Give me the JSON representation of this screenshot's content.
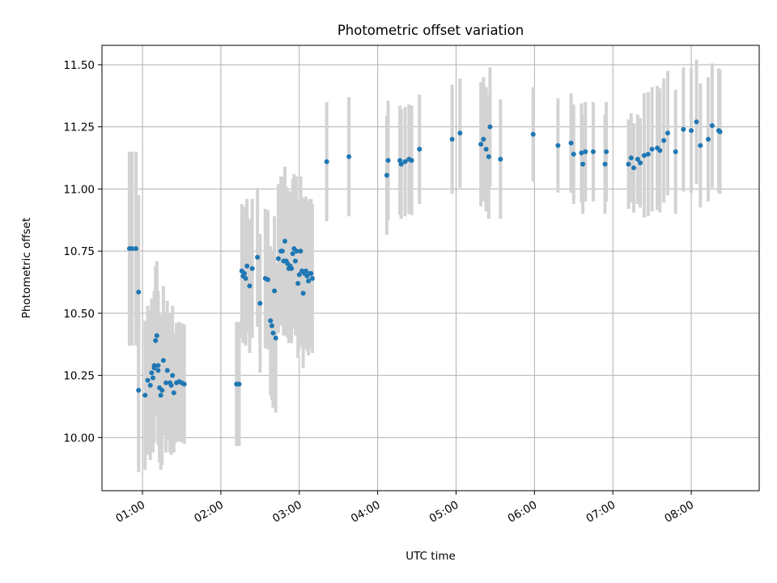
{
  "chart_data": {
    "type": "scatter",
    "title": "Photometric offset variation",
    "xlabel": "UTC time",
    "ylabel": "Photometric offset",
    "x_unit": "UTC time of day (HH:MM)",
    "xlim": [
      "00:29",
      "08:52"
    ],
    "ylim": [
      9.786,
      11.578
    ],
    "x_ticks": [
      "01:00",
      "02:00",
      "03:00",
      "04:00",
      "05:00",
      "06:00",
      "07:00",
      "08:00"
    ],
    "y_ticks": [
      "10.00",
      "10.25",
      "10.50",
      "10.75",
      "11.00",
      "11.25",
      "11.50"
    ],
    "grid": true,
    "colors": {
      "points": "#1f77b4",
      "error_bars": "#d3d3d3",
      "grid": "#b0b0b0",
      "axes": "#000000"
    },
    "series": [
      {
        "x": [
          "00:50",
          "00:52",
          "00:55",
          "00:57",
          "00:57",
          "01:02",
          "01:04",
          "01:06",
          "01:07",
          "01:08",
          "01:09",
          "01:09",
          "01:10",
          "01:11",
          "01:12",
          "01:12",
          "01:13",
          "01:14",
          "01:15",
          "01:16",
          "01:18",
          "01:19",
          "01:21",
          "01:22",
          "01:23",
          "01:24",
          "01:26",
          "01:28",
          "01:30",
          "01:32"
        ],
        "y": [
          10.76,
          10.76,
          10.76,
          10.585,
          10.19,
          10.17,
          10.23,
          10.21,
          10.26,
          10.24,
          10.29,
          10.28,
          10.39,
          10.41,
          10.27,
          10.29,
          10.2,
          10.17,
          10.19,
          10.31,
          10.22,
          10.27,
          10.22,
          10.21,
          10.25,
          10.18,
          10.22,
          10.225,
          10.22,
          10.215
        ],
        "yerr_lo": [
          0.39,
          0.39,
          0.39,
          0.39,
          0.33,
          0.3,
          0.3,
          0.3,
          0.3,
          0.3,
          0.3,
          0.3,
          0.3,
          0.3,
          0.3,
          0.3,
          0.3,
          0.3,
          0.3,
          0.3,
          0.28,
          0.28,
          0.28,
          0.28,
          0.28,
          0.24,
          0.24,
          0.24,
          0.24,
          0.24
        ],
        "yerr_hi": [
          0.39,
          0.39,
          0.39,
          0.39,
          0.33,
          0.3,
          0.3,
          0.3,
          0.3,
          0.3,
          0.3,
          0.3,
          0.3,
          0.3,
          0.3,
          0.3,
          0.3,
          0.3,
          0.3,
          0.3,
          0.28,
          0.28,
          0.28,
          0.28,
          0.28,
          0.24,
          0.24,
          0.24,
          0.24,
          0.24
        ]
      },
      {
        "x": [
          "02:12",
          "02:14",
          "02:16",
          "02:17",
          "02:18",
          "02:19",
          "02:20",
          "02:22",
          "02:24",
          "02:28",
          "02:30",
          "02:34",
          "02:36",
          "02:38",
          "02:39",
          "02:40",
          "02:41",
          "02:42",
          "02:44",
          "02:46",
          "02:47",
          "02:48",
          "02:49",
          "02:50",
          "02:51",
          "02:52",
          "02:53",
          "02:54",
          "02:55",
          "02:56",
          "02:57",
          "02:58",
          "02:59",
          "03:00",
          "03:01",
          "03:02",
          "03:03",
          "03:04",
          "03:05",
          "03:06",
          "03:07",
          "03:08",
          "03:09",
          "03:10"
        ],
        "y": [
          10.215,
          10.215,
          10.67,
          10.65,
          10.66,
          10.64,
          10.69,
          10.61,
          10.68,
          10.725,
          10.54,
          10.64,
          10.635,
          10.47,
          10.45,
          10.42,
          10.59,
          10.4,
          10.72,
          10.75,
          10.75,
          10.71,
          10.79,
          10.71,
          10.7,
          10.68,
          10.69,
          10.68,
          10.74,
          10.76,
          10.71,
          10.75,
          10.62,
          10.655,
          10.75,
          10.67,
          10.58,
          10.66,
          10.67,
          10.65,
          10.63,
          10.66,
          10.66,
          10.64
        ],
        "yerr_lo": [
          0.25,
          0.25,
          0.27,
          0.27,
          0.27,
          0.27,
          0.27,
          0.27,
          0.28,
          0.28,
          0.28,
          0.28,
          0.28,
          0.3,
          0.3,
          0.3,
          0.3,
          0.3,
          0.3,
          0.3,
          0.3,
          0.3,
          0.3,
          0.3,
          0.3,
          0.3,
          0.3,
          0.3,
          0.3,
          0.3,
          0.3,
          0.3,
          0.3,
          0.3,
          0.3,
          0.3,
          0.3,
          0.3,
          0.3,
          0.3,
          0.3,
          0.3,
          0.3,
          0.3
        ],
        "yerr_hi": [
          0.25,
          0.25,
          0.27,
          0.27,
          0.27,
          0.27,
          0.27,
          0.27,
          0.28,
          0.28,
          0.28,
          0.28,
          0.28,
          0.3,
          0.3,
          0.3,
          0.3,
          0.3,
          0.3,
          0.3,
          0.3,
          0.3,
          0.3,
          0.3,
          0.3,
          0.3,
          0.3,
          0.3,
          0.3,
          0.3,
          0.3,
          0.3,
          0.3,
          0.3,
          0.3,
          0.3,
          0.3,
          0.3,
          0.3,
          0.3,
          0.3,
          0.3,
          0.3,
          0.3
        ]
      },
      {
        "x": [
          "03:21",
          "03:38",
          "04:07",
          "04:08",
          "04:17",
          "04:18",
          "04:21",
          "04:24",
          "04:26",
          "04:32",
          "04:57",
          "05:03",
          "05:19",
          "05:21",
          "05:23",
          "05:25",
          "05:26",
          "05:34",
          "05:59",
          "06:18",
          "06:28",
          "06:30",
          "06:36",
          "06:37",
          "06:39",
          "06:45",
          "06:54",
          "06:55",
          "07:12",
          "07:14",
          "07:16",
          "07:19",
          "07:21",
          "07:24",
          "07:27",
          "07:30",
          "07:34",
          "07:36",
          "07:39",
          "07:42",
          "07:48",
          "07:54",
          "08:00",
          "08:04",
          "08:07",
          "08:13",
          "08:16",
          "08:21",
          "08:22"
        ],
        "y": [
          11.11,
          11.13,
          11.055,
          11.115,
          11.115,
          11.1,
          11.11,
          11.12,
          11.115,
          11.16,
          11.2,
          11.225,
          11.18,
          11.2,
          11.16,
          11.13,
          11.25,
          11.12,
          11.22,
          11.175,
          11.185,
          11.14,
          11.145,
          11.1,
          11.15,
          11.15,
          11.1,
          11.15,
          11.1,
          11.125,
          11.085,
          11.12,
          11.105,
          11.135,
          11.14,
          11.16,
          11.165,
          11.155,
          11.195,
          11.225,
          11.15,
          11.24,
          11.235,
          11.27,
          11.175,
          11.2,
          11.255,
          11.235,
          11.23
        ],
        "yerr_lo": [
          0.24,
          0.24,
          0.24,
          0.24,
          0.22,
          0.22,
          0.22,
          0.22,
          0.22,
          0.22,
          0.22,
          0.22,
          0.25,
          0.25,
          0.25,
          0.25,
          0.24,
          0.24,
          0.19,
          0.19,
          0.2,
          0.2,
          0.2,
          0.2,
          0.2,
          0.2,
          0.2,
          0.2,
          0.18,
          0.18,
          0.18,
          0.18,
          0.18,
          0.25,
          0.25,
          0.25,
          0.25,
          0.25,
          0.25,
          0.25,
          0.25,
          0.25,
          0.25,
          0.25,
          0.25,
          0.25,
          0.25,
          0.25,
          0.25
        ],
        "yerr_hi": [
          0.24,
          0.24,
          0.24,
          0.24,
          0.22,
          0.22,
          0.22,
          0.22,
          0.22,
          0.22,
          0.22,
          0.22,
          0.25,
          0.25,
          0.25,
          0.25,
          0.24,
          0.24,
          0.19,
          0.19,
          0.2,
          0.2,
          0.2,
          0.2,
          0.2,
          0.2,
          0.2,
          0.2,
          0.18,
          0.18,
          0.18,
          0.18,
          0.18,
          0.25,
          0.25,
          0.25,
          0.25,
          0.25,
          0.25,
          0.25,
          0.25,
          0.25,
          0.25,
          0.25,
          0.25,
          0.25,
          0.25,
          0.25,
          0.25
        ]
      }
    ]
  }
}
